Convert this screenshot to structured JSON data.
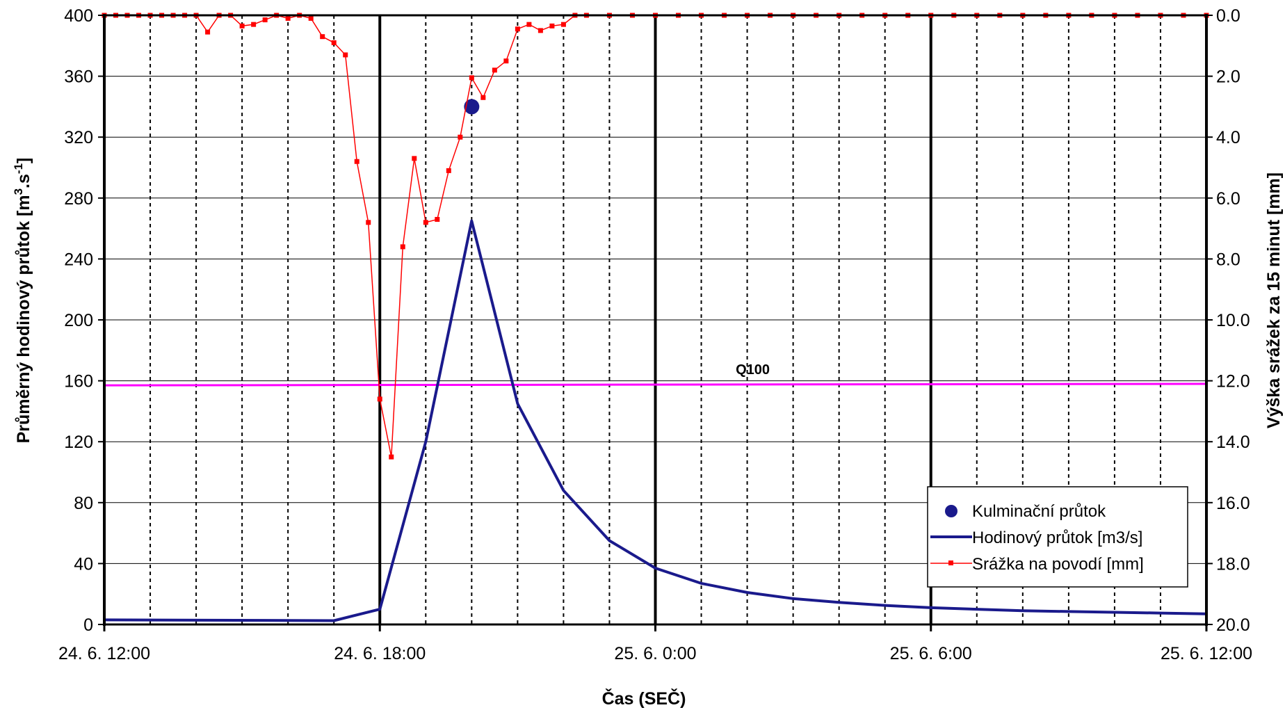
{
  "chart_data": {
    "type": "line",
    "xlabel": "Čas (SEČ)",
    "ylabel_left": "Průměrný hodinový průtok [m³.s⁻¹]",
    "ylabel_left_parts": {
      "main": "Průměrný hodinový průtok [m",
      "exp1": "3",
      "mid": ".s",
      "exp2": "-1",
      "end": "]"
    },
    "ylabel_right": "Výška srážek za 15 minut [mm]",
    "x_range_hours": [
      12,
      36
    ],
    "x_ticks": [
      {
        "hour": 12,
        "label": "24. 6. 12:00"
      },
      {
        "hour": 18,
        "label": "24. 6. 18:00"
      },
      {
        "hour": 24,
        "label": "25. 6. 0:00"
      },
      {
        "hour": 30,
        "label": "25. 6. 6:00"
      },
      {
        "hour": 36,
        "label": "25. 6. 12:00"
      }
    ],
    "ylim_left": [
      0,
      400
    ],
    "y_ticks_left": [
      "0",
      "40",
      "80",
      "120",
      "160",
      "200",
      "240",
      "280",
      "320",
      "360",
      "400"
    ],
    "ylim_right": [
      0,
      20
    ],
    "right_axis_inverted": true,
    "y_ticks_right": [
      "0.0",
      "2.0",
      "4.0",
      "6.0",
      "8.0",
      "10.0",
      "12.0",
      "14.0",
      "16.0",
      "18.0",
      "20.0"
    ],
    "grid": {
      "horizontal": true,
      "vertical_major_hours": [
        18,
        24,
        30
      ],
      "vertical_minor_dotted_every_hours": 1
    },
    "legend_position": "bottom-right",
    "reference_line": {
      "label": "Q100",
      "value_start": 157,
      "value_end": 158,
      "color": "#ff00ff"
    },
    "series": [
      {
        "name": "Kulminační průtok",
        "kind": "point",
        "color": "#1a1a8c",
        "points": [
          {
            "hour": 20,
            "value": 340
          }
        ]
      },
      {
        "name": "Hodinový průtok [m3/s]",
        "kind": "line",
        "axis": "left",
        "color": "#1a1a8c",
        "points": [
          [
            12,
            3
          ],
          [
            17,
            2.5
          ],
          [
            18,
            10
          ],
          [
            19,
            120
          ],
          [
            20,
            265
          ],
          [
            21,
            145
          ],
          [
            22,
            88
          ],
          [
            23,
            55
          ],
          [
            24,
            37
          ],
          [
            25,
            27
          ],
          [
            26,
            21
          ],
          [
            27,
            17
          ],
          [
            28,
            14.5
          ],
          [
            29,
            12.5
          ],
          [
            30,
            11
          ],
          [
            31,
            10
          ],
          [
            32,
            9
          ],
          [
            33,
            8.5
          ],
          [
            34,
            8
          ],
          [
            35,
            7.5
          ],
          [
            36,
            7
          ]
        ]
      },
      {
        "name": "Srážka na povodí [mm]",
        "kind": "line-markers",
        "axis": "right",
        "color": "#ff0000",
        "points": [
          [
            12,
            0
          ],
          [
            12.25,
            0
          ],
          [
            12.5,
            0
          ],
          [
            12.75,
            0
          ],
          [
            13,
            0
          ],
          [
            13.25,
            0
          ],
          [
            13.5,
            0
          ],
          [
            13.75,
            0
          ],
          [
            14,
            0
          ],
          [
            14.25,
            0.55
          ],
          [
            14.5,
            0
          ],
          [
            14.75,
            0
          ],
          [
            15,
            0.35
          ],
          [
            15.25,
            0.3
          ],
          [
            15.5,
            0.15
          ],
          [
            15.75,
            0
          ],
          [
            16,
            0.1
          ],
          [
            16.25,
            0
          ],
          [
            16.5,
            0.1
          ],
          [
            16.75,
            0.7
          ],
          [
            17,
            0.9
          ],
          [
            17.25,
            1.3
          ],
          [
            17.5,
            4.8
          ],
          [
            17.75,
            6.8
          ],
          [
            18,
            12.6
          ],
          [
            18.25,
            14.5
          ],
          [
            18.5,
            7.6
          ],
          [
            18.75,
            4.7
          ],
          [
            19,
            6.8
          ],
          [
            19.25,
            6.7
          ],
          [
            19.5,
            5.1
          ],
          [
            19.75,
            4.0
          ],
          [
            20,
            2.05
          ],
          [
            20.25,
            2.7
          ],
          [
            20.5,
            1.8
          ],
          [
            20.75,
            1.5
          ],
          [
            21,
            0.45
          ],
          [
            21.25,
            0.3
          ],
          [
            21.5,
            0.5
          ],
          [
            21.75,
            0.35
          ],
          [
            22,
            0.3
          ],
          [
            22.25,
            0
          ],
          [
            22.5,
            0
          ],
          [
            23,
            0
          ],
          [
            23.5,
            0
          ],
          [
            24,
            0
          ],
          [
            24.5,
            0
          ],
          [
            25,
            0
          ],
          [
            25.5,
            0
          ],
          [
            26,
            0
          ],
          [
            26.5,
            0
          ],
          [
            27,
            0
          ],
          [
            27.5,
            0
          ],
          [
            28,
            0
          ],
          [
            28.5,
            0
          ],
          [
            29,
            0
          ],
          [
            29.5,
            0
          ],
          [
            30,
            0
          ],
          [
            30.5,
            0
          ],
          [
            31,
            0
          ],
          [
            31.5,
            0
          ],
          [
            32,
            0
          ],
          [
            32.5,
            0
          ],
          [
            33,
            0
          ],
          [
            33.5,
            0
          ],
          [
            34,
            0
          ],
          [
            34.5,
            0
          ],
          [
            35,
            0
          ],
          [
            35.5,
            0
          ],
          [
            36,
            0
          ]
        ]
      }
    ]
  }
}
